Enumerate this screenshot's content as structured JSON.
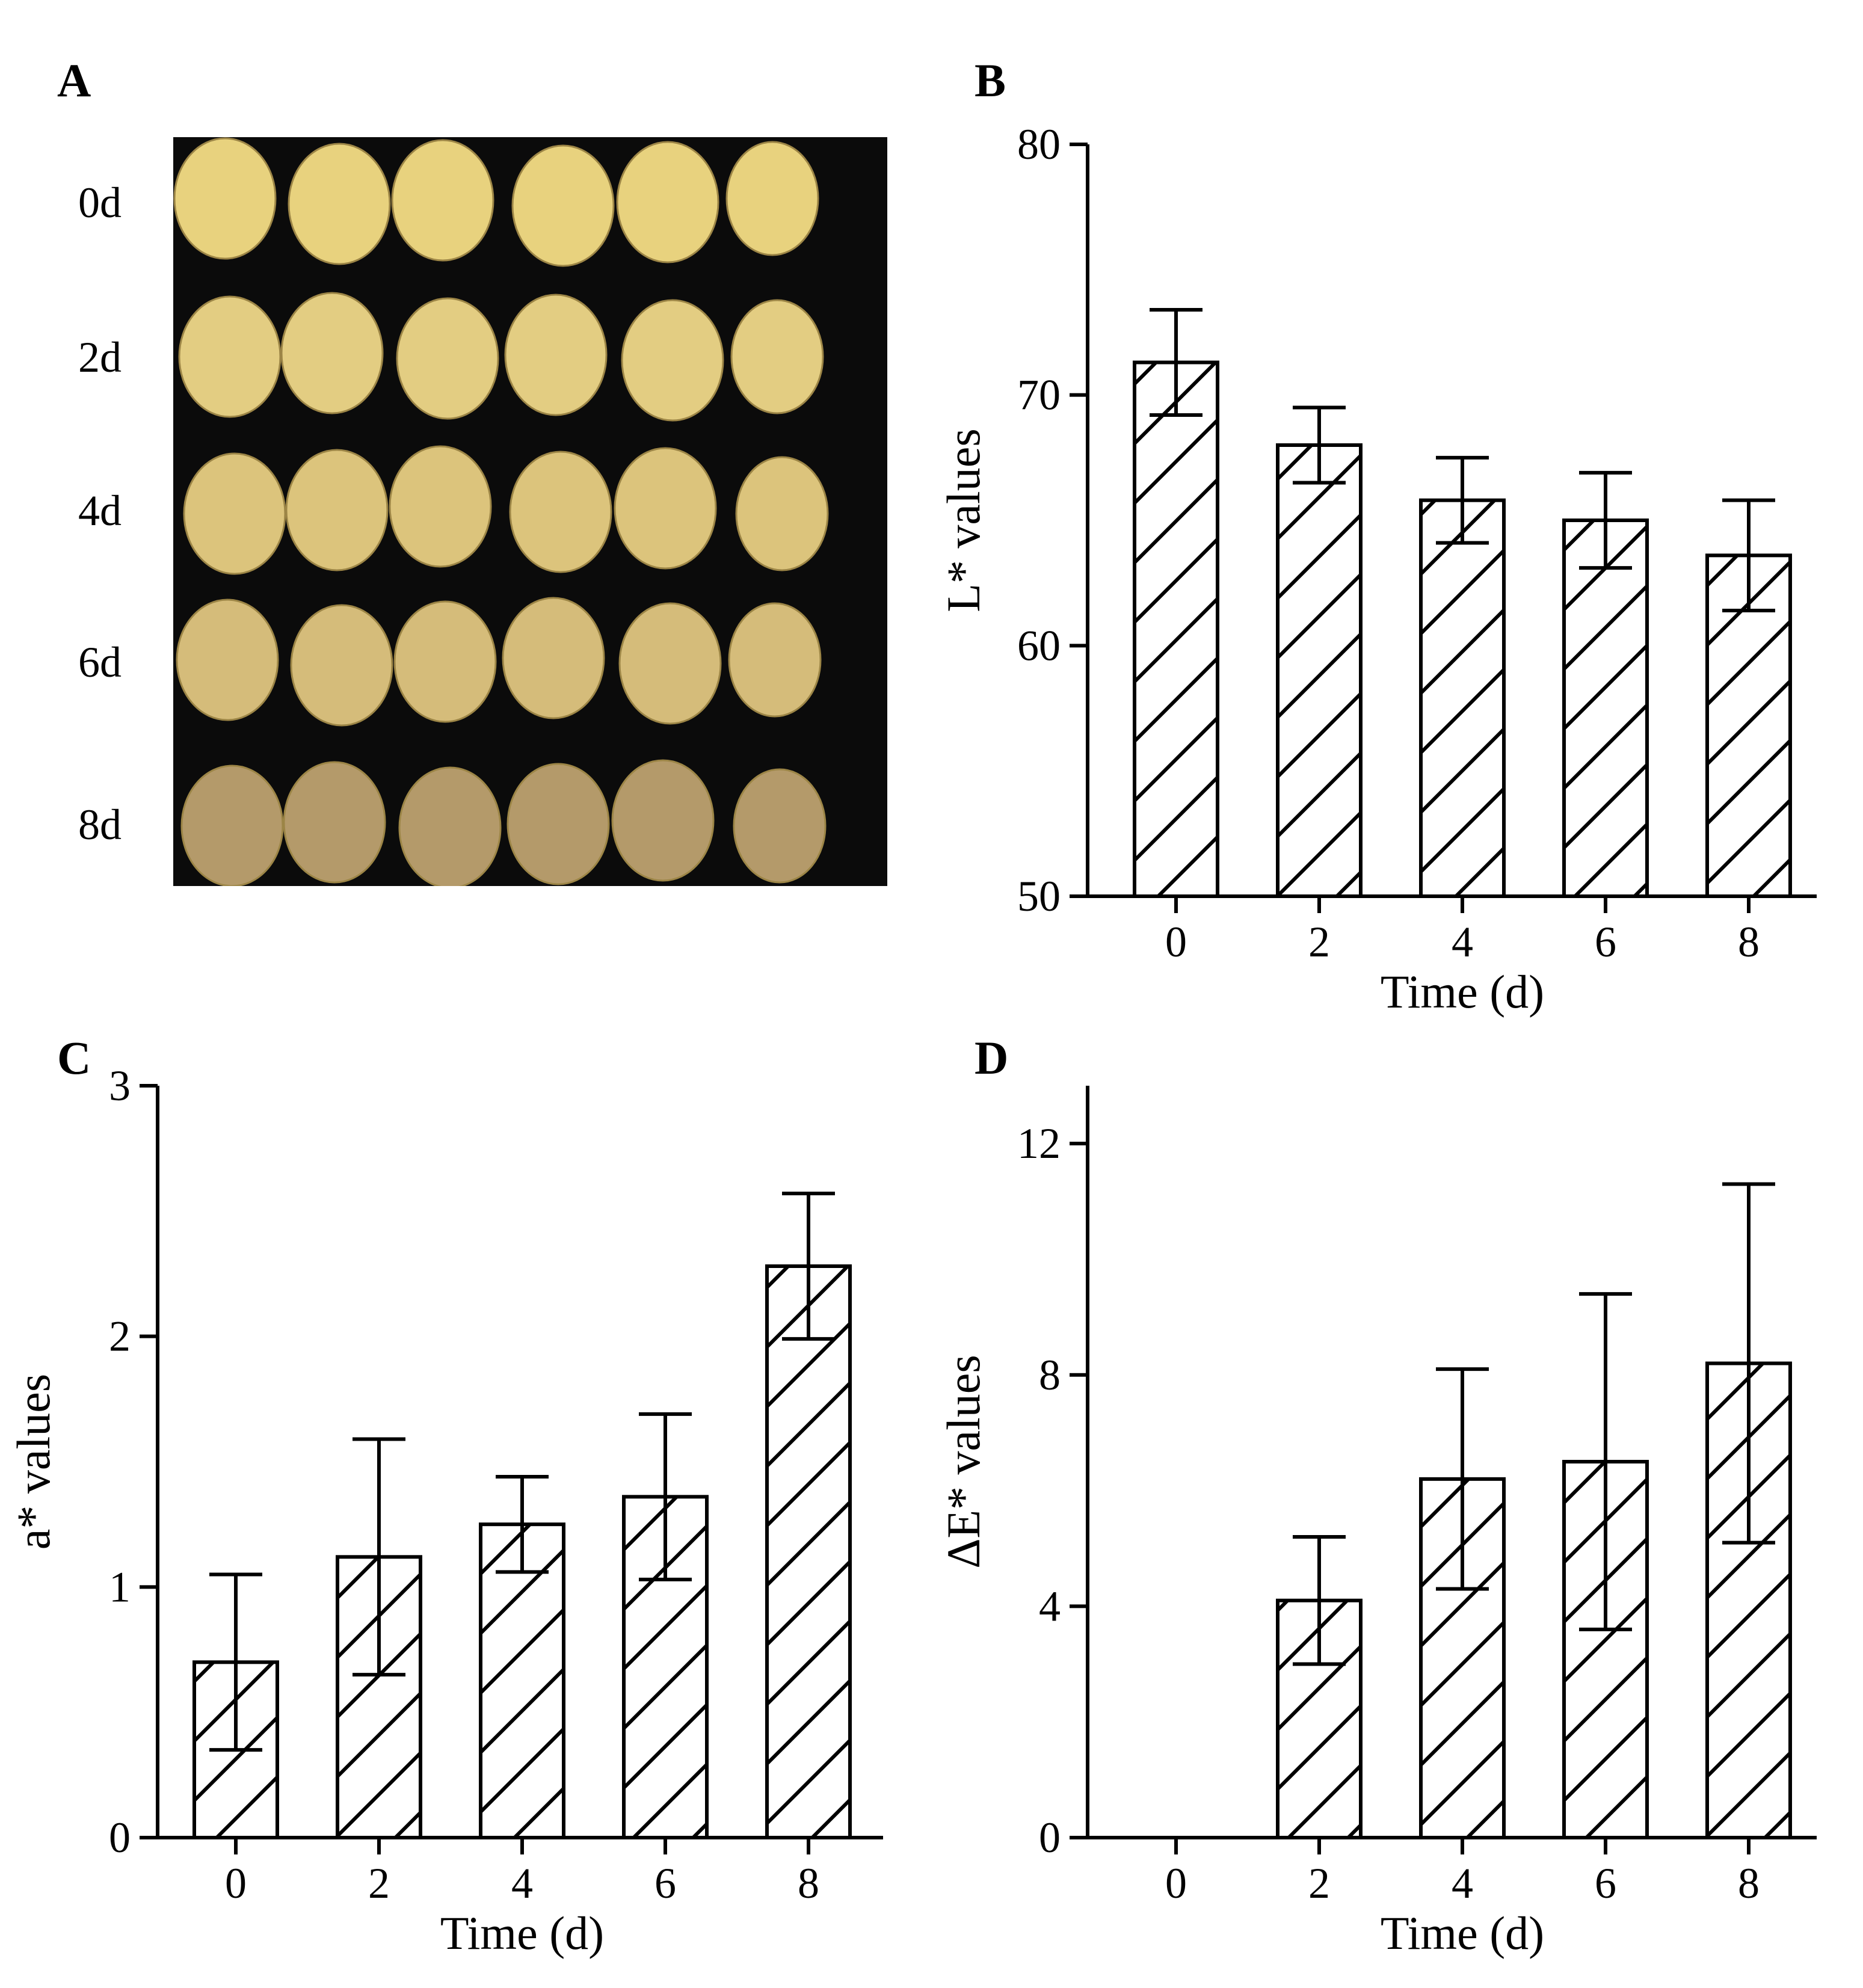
{
  "figure": {
    "panel_labels": {
      "A": "A",
      "B": "B",
      "C": "C",
      "D": "D"
    },
    "photo": {
      "rows": [
        "0d",
        "2d",
        "4d",
        "6d",
        "8d"
      ],
      "slices_per_row": 6,
      "background": "#0b0b0b",
      "slice_colors": [
        "#e8d27e",
        "#e3cd82",
        "#dcc47c",
        "#d5bc7a",
        "#b49a6a"
      ]
    }
  },
  "chart_data": [
    {
      "id": "B",
      "type": "bar",
      "title": "",
      "xlabel": "Time (d)",
      "ylabel": "L* values",
      "categories": [
        "0",
        "2",
        "4",
        "6",
        "8"
      ],
      "values": [
        71.3,
        68.0,
        65.8,
        65.0,
        63.6
      ],
      "errors": [
        2.1,
        1.5,
        1.7,
        1.9,
        2.2
      ],
      "ylim": [
        50,
        80
      ],
      "yticks": [
        50,
        60,
        70,
        80
      ],
      "yticklabels": [
        "50",
        "60",
        "70",
        "80"
      ],
      "fill": "hatched",
      "grid": false
    },
    {
      "id": "C",
      "type": "bar",
      "title": "",
      "xlabel": "Time (d)",
      "ylabel": "a* values",
      "categories": [
        "0",
        "2",
        "4",
        "6",
        "8"
      ],
      "values": [
        0.7,
        1.12,
        1.25,
        1.36,
        2.28
      ],
      "errors": [
        0.35,
        0.47,
        0.19,
        0.33,
        0.29
      ],
      "ylim": [
        0,
        3
      ],
      "yticks": [
        0,
        1,
        2,
        3
      ],
      "yticklabels": [
        "0",
        "1",
        "2",
        "3"
      ],
      "fill": "hatched",
      "grid": false
    },
    {
      "id": "D",
      "type": "bar",
      "title": "",
      "xlabel": "Time (d)",
      "ylabel": "ΔE* values",
      "categories": [
        "0",
        "2",
        "4",
        "6",
        "8"
      ],
      "values": [
        0,
        4.1,
        6.2,
        6.5,
        8.2
      ],
      "errors": [
        0,
        1.1,
        1.9,
        2.9,
        3.1
      ],
      "ylim": [
        0,
        13
      ],
      "yticks": [
        0,
        4,
        8,
        12
      ],
      "yticklabels": [
        "0",
        "4",
        "8",
        "12"
      ],
      "fill": "hatched",
      "grid": false
    }
  ]
}
